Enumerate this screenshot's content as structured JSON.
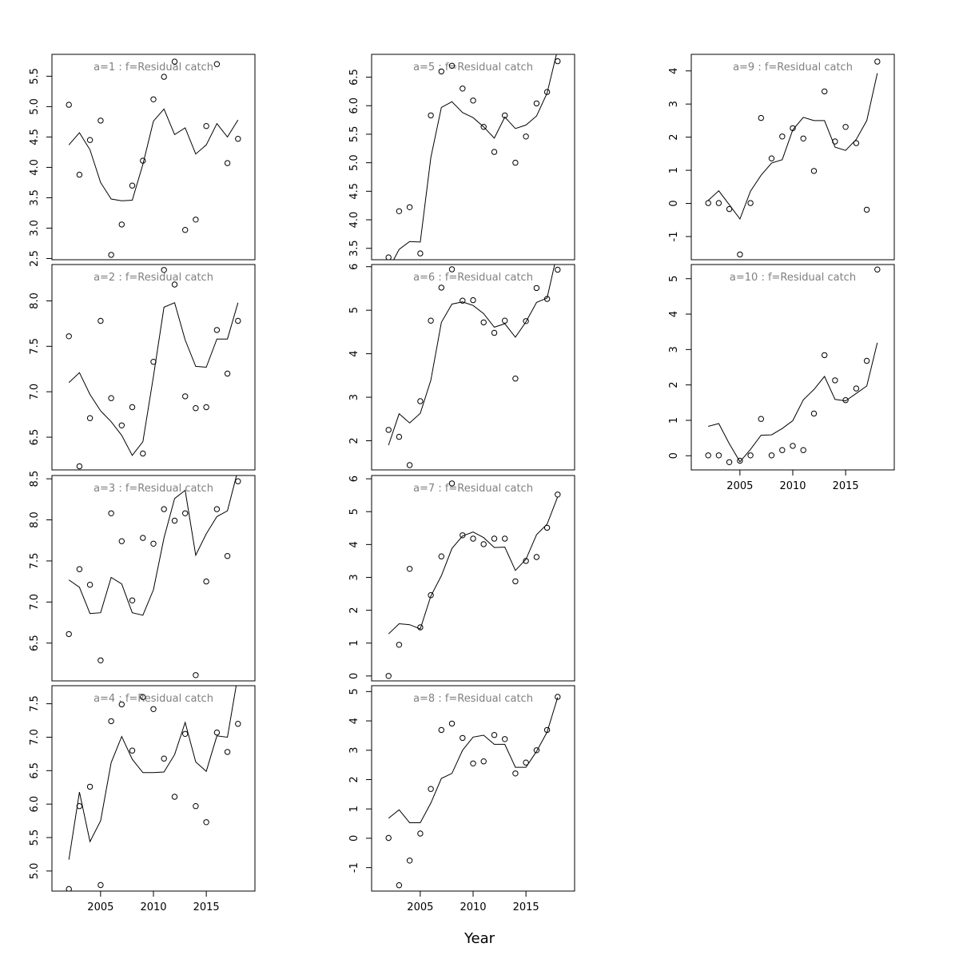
{
  "figure": {
    "xlabel": "Year",
    "line_color": "#000000",
    "title_color": "#808080"
  },
  "chart_data": [
    {
      "type": "line",
      "title": "a=1  :  f=Residual catch",
      "x": [
        2002,
        2003,
        2004,
        2005,
        2006,
        2007,
        2008,
        2009,
        2010,
        2011,
        2012,
        2013,
        2014,
        2015,
        2016,
        2017,
        2018
      ],
      "series": [
        {
          "role": "fitted line",
          "values": [
            4.37,
            4.57,
            4.29,
            3.75,
            3.48,
            3.45,
            3.46,
            4.05,
            4.76,
            4.96,
            4.54,
            4.65,
            4.22,
            4.37,
            4.72,
            4.5,
            4.78
          ]
        },
        {
          "role": "observed points",
          "values": [
            5.03,
            3.88,
            4.45,
            4.77,
            2.56,
            3.06,
            3.7,
            4.11,
            5.12,
            5.49,
            5.74,
            2.97,
            3.14,
            4.68,
            5.7,
            4.07,
            4.47
          ]
        }
      ],
      "xlim": [
        2000.4,
        2019.6
      ],
      "ylim": [
        2.48,
        5.86
      ],
      "y_ticks": [
        2.5,
        3.0,
        3.5,
        4.0,
        4.5,
        5.0,
        5.5
      ],
      "y_tick_labels": [
        "2.5",
        "3.0",
        "3.5",
        "4.0",
        "4.5",
        "5.0",
        "5.5"
      ],
      "x_ticks": [],
      "x_tick_labels": []
    },
    {
      "type": "line",
      "title": "a=2  :  f=Residual catch",
      "x": [
        2002,
        2003,
        2004,
        2005,
        2006,
        2007,
        2008,
        2009,
        2010,
        2011,
        2012,
        2013,
        2014,
        2015,
        2016,
        2017,
        2018
      ],
      "series": [
        {
          "role": "fitted line",
          "values": [
            7.1,
            7.21,
            6.97,
            6.79,
            6.67,
            6.52,
            6.3,
            6.45,
            7.17,
            7.93,
            7.98,
            7.57,
            7.28,
            7.27,
            7.58,
            7.58,
            7.98
          ]
        },
        {
          "role": "observed points",
          "values": [
            7.61,
            6.18,
            6.71,
            7.78,
            6.93,
            6.63,
            6.83,
            6.32,
            7.33,
            8.34,
            8.18,
            6.95,
            6.82,
            6.83,
            7.68,
            7.2,
            7.78
          ]
        }
      ],
      "xlim": [
        2000.4,
        2019.6
      ],
      "ylim": [
        6.14,
        8.4
      ],
      "y_ticks": [
        6.5,
        7.0,
        7.5,
        8.0
      ],
      "y_tick_labels": [
        "6.5",
        "7.0",
        "7.5",
        "8.0"
      ],
      "x_ticks": [],
      "x_tick_labels": []
    },
    {
      "type": "line",
      "title": "a=3  :  f=Residual catch",
      "x": [
        2002,
        2003,
        2004,
        2005,
        2006,
        2007,
        2008,
        2009,
        2010,
        2011,
        2012,
        2013,
        2014,
        2015,
        2016,
        2017,
        2018
      ],
      "series": [
        {
          "role": "fitted line",
          "values": [
            7.27,
            7.18,
            6.86,
            6.87,
            7.3,
            7.22,
            6.87,
            6.84,
            7.15,
            7.78,
            8.26,
            8.36,
            7.57,
            7.83,
            8.04,
            8.11,
            8.61
          ]
        },
        {
          "role": "observed points",
          "values": [
            6.61,
            7.4,
            7.21,
            6.29,
            8.08,
            7.74,
            7.02,
            7.78,
            7.71,
            8.13,
            7.99,
            8.08,
            6.11,
            7.25,
            8.13,
            7.56,
            8.47
          ]
        }
      ],
      "xlim": [
        2000.4,
        2019.6
      ],
      "ylim": [
        6.04,
        8.54
      ],
      "y_ticks": [
        6.5,
        7.0,
        7.5,
        8.0,
        8.5
      ],
      "y_tick_labels": [
        "6.5",
        "7.0",
        "7.5",
        "8.0",
        "8.5"
      ],
      "x_ticks": [],
      "x_tick_labels": []
    },
    {
      "type": "line",
      "title": "a=4  :  f=Residual catch",
      "x": [
        2002,
        2003,
        2004,
        2005,
        2006,
        2007,
        2008,
        2009,
        2010,
        2011,
        2012,
        2013,
        2014,
        2015,
        2016,
        2017,
        2018
      ],
      "series": [
        {
          "role": "fitted line",
          "values": [
            5.17,
            6.18,
            5.44,
            5.75,
            6.62,
            7.01,
            6.67,
            6.47,
            6.47,
            6.48,
            6.74,
            7.22,
            6.63,
            6.49,
            7.02,
            7.0,
            7.93
          ]
        },
        {
          "role": "observed points",
          "values": [
            4.73,
            5.97,
            6.26,
            4.79,
            7.24,
            7.49,
            6.8,
            7.6,
            7.42,
            6.68,
            6.11,
            7.05,
            5.97,
            5.73,
            7.07,
            6.78,
            7.2
          ]
        }
      ],
      "xlim": [
        2000.4,
        2019.6
      ],
      "ylim": [
        4.7,
        7.77
      ],
      "y_ticks": [
        5.0,
        5.5,
        6.0,
        6.5,
        7.0,
        7.5
      ],
      "y_tick_labels": [
        "5.0",
        "5.5",
        "6.0",
        "6.5",
        "7.0",
        "7.5"
      ],
      "x_ticks": [
        2005,
        2010,
        2015
      ],
      "x_tick_labels": [
        "2005",
        "2010",
        "2015"
      ]
    },
    {
      "type": "line",
      "title": "a=5  :  f=Residual catch",
      "x": [
        2002,
        2003,
        2004,
        2005,
        2006,
        2007,
        2008,
        2009,
        2010,
        2011,
        2012,
        2013,
        2014,
        2015,
        2016,
        2017,
        2018
      ],
      "series": [
        {
          "role": "fitted line",
          "values": [
            3.13,
            3.48,
            3.62,
            3.61,
            5.09,
            5.97,
            6.07,
            5.88,
            5.79,
            5.63,
            5.43,
            5.8,
            5.6,
            5.66,
            5.82,
            6.22,
            6.99
          ]
        },
        {
          "role": "observed points",
          "values": [
            3.34,
            4.15,
            4.22,
            3.41,
            5.83,
            6.6,
            6.7,
            6.3,
            6.09,
            5.63,
            5.19,
            5.83,
            5.0,
            5.46,
            6.04,
            6.24,
            6.78
          ]
        }
      ],
      "xlim": [
        2000.4,
        2019.6
      ],
      "ylim": [
        3.3,
        6.9
      ],
      "y_ticks": [
        3.5,
        4.0,
        4.5,
        5.0,
        5.5,
        6.0,
        6.5
      ],
      "y_tick_labels": [
        "3.5",
        "4.0",
        "4.5",
        "5.0",
        "5.5",
        "6.0",
        "6.5"
      ],
      "x_ticks": [],
      "x_tick_labels": []
    },
    {
      "type": "line",
      "title": "a=6  :  f=Residual catch",
      "x": [
        2002,
        2003,
        2004,
        2005,
        2006,
        2007,
        2008,
        2009,
        2010,
        2011,
        2012,
        2013,
        2014,
        2015,
        2016,
        2017,
        2018
      ],
      "series": [
        {
          "role": "fitted line",
          "values": [
            1.9,
            2.62,
            2.41,
            2.63,
            3.39,
            4.72,
            5.14,
            5.19,
            5.11,
            4.92,
            4.61,
            4.69,
            4.38,
            4.73,
            5.18,
            5.28,
            6.36
          ]
        },
        {
          "role": "observed points",
          "values": [
            2.25,
            2.09,
            1.44,
            2.91,
            4.76,
            5.52,
            5.94,
            5.22,
            5.23,
            4.72,
            4.48,
            4.76,
            3.43,
            4.75,
            5.51,
            5.26,
            5.93
          ]
        }
      ],
      "xlim": [
        2000.4,
        2019.6
      ],
      "ylim": [
        1.33,
        6.05
      ],
      "y_ticks": [
        2,
        3,
        4,
        5,
        6
      ],
      "y_tick_labels": [
        "2",
        "3",
        "4",
        "5",
        "6"
      ],
      "x_ticks": [],
      "x_tick_labels": []
    },
    {
      "type": "line",
      "title": "a=7  :  f=Residual catch",
      "x": [
        2002,
        2003,
        2004,
        2005,
        2006,
        2007,
        2008,
        2009,
        2010,
        2011,
        2012,
        2013,
        2014,
        2015,
        2016,
        2017,
        2018
      ],
      "series": [
        {
          "role": "fitted line",
          "values": [
            1.28,
            1.59,
            1.56,
            1.43,
            2.43,
            3.05,
            3.88,
            4.26,
            4.38,
            4.21,
            3.91,
            3.92,
            3.21,
            3.55,
            4.3,
            4.62,
            5.45
          ]
        },
        {
          "role": "observed points",
          "values": [
            0.0,
            0.95,
            3.26,
            1.48,
            2.46,
            3.64,
            5.86,
            4.28,
            4.18,
            4.01,
            4.18,
            4.18,
            2.88,
            3.5,
            3.62,
            4.51,
            5.52
          ]
        }
      ],
      "xlim": [
        2000.4,
        2019.6
      ],
      "ylim": [
        -0.15,
        6.1
      ],
      "y_ticks": [
        0,
        1,
        2,
        3,
        4,
        5,
        6
      ],
      "y_tick_labels": [
        "0",
        "1",
        "2",
        "3",
        "4",
        "5",
        "6"
      ],
      "x_ticks": [],
      "x_tick_labels": []
    },
    {
      "type": "line",
      "title": "a=8  :  f=Residual catch",
      "x": [
        2002,
        2003,
        2004,
        2005,
        2006,
        2007,
        2008,
        2009,
        2010,
        2011,
        2012,
        2013,
        2014,
        2015,
        2016,
        2017,
        2018
      ],
      "series": [
        {
          "role": "fitted line",
          "values": [
            0.68,
            0.97,
            0.53,
            0.53,
            1.2,
            2.04,
            2.21,
            3.0,
            3.45,
            3.51,
            3.2,
            3.2,
            2.42,
            2.42,
            2.96,
            3.62,
            4.8
          ]
        },
        {
          "role": "observed points",
          "values": [
            0.01,
            -1.6,
            -0.76,
            0.16,
            1.68,
            3.69,
            3.91,
            3.42,
            2.55,
            2.62,
            3.52,
            3.38,
            2.21,
            2.58,
            3.0,
            3.69,
            4.82
          ]
        }
      ],
      "xlim": [
        2000.4,
        2019.6
      ],
      "ylim": [
        -1.8,
        5.2
      ],
      "y_ticks": [
        -1,
        0,
        1,
        2,
        3,
        4,
        5
      ],
      "y_tick_labels": [
        "-1",
        "0",
        "1",
        "2",
        "3",
        "4",
        "5"
      ],
      "x_ticks": [
        2005,
        2010,
        2015
      ],
      "x_tick_labels": [
        "2005",
        "2010",
        "2015"
      ]
    },
    {
      "type": "line",
      "title": "a=9  :  f=Residual catch",
      "x": [
        2002,
        2003,
        2004,
        2005,
        2006,
        2007,
        2008,
        2009,
        2010,
        2011,
        2012,
        2013,
        2014,
        2015,
        2016,
        2017,
        2018
      ],
      "series": [
        {
          "role": "fitted line",
          "values": [
            0.09,
            0.38,
            -0.04,
            -0.47,
            0.37,
            0.85,
            1.22,
            1.32,
            2.22,
            2.6,
            2.5,
            2.5,
            1.7,
            1.6,
            1.93,
            2.5,
            3.93
          ]
        },
        {
          "role": "observed points",
          "values": [
            0.01,
            0.01,
            -0.17,
            -1.54,
            0.01,
            2.58,
            1.36,
            2.02,
            2.27,
            1.96,
            0.98,
            3.38,
            1.87,
            2.31,
            1.82,
            -0.19,
            4.28
          ]
        }
      ],
      "xlim": [
        2000.4,
        2019.6
      ],
      "ylim": [
        -1.7,
        4.5
      ],
      "y_ticks": [
        -1,
        0,
        1,
        2,
        3,
        4
      ],
      "y_tick_labels": [
        "-1",
        "0",
        "1",
        "2",
        "3",
        "4"
      ],
      "x_ticks": [],
      "x_tick_labels": []
    },
    {
      "type": "line",
      "title": "a=10  :  f=Residual catch",
      "x": [
        2002,
        2003,
        2004,
        2005,
        2006,
        2007,
        2008,
        2009,
        2010,
        2011,
        2012,
        2013,
        2014,
        2015,
        2016,
        2017,
        2018
      ],
      "series": [
        {
          "role": "fitted line",
          "values": [
            0.83,
            0.91,
            0.34,
            -0.17,
            0.18,
            0.58,
            0.59,
            0.77,
            0.99,
            1.58,
            1.87,
            2.24,
            1.59,
            1.55,
            1.76,
            1.97,
            3.19
          ]
        },
        {
          "role": "observed points",
          "values": [
            0.01,
            0.01,
            -0.18,
            -0.14,
            0.01,
            1.04,
            0.01,
            0.16,
            0.28,
            0.16,
            1.19,
            2.84,
            2.13,
            1.57,
            1.9,
            2.68,
            5.26
          ]
        }
      ],
      "xlim": [
        2000.4,
        2019.6
      ],
      "ylim": [
        -0.4,
        5.4
      ],
      "y_ticks": [
        0,
        1,
        2,
        3,
        4,
        5
      ],
      "y_tick_labels": [
        "0",
        "1",
        "2",
        "3",
        "4",
        "5"
      ],
      "x_ticks": [
        2005,
        2010,
        2015
      ],
      "x_tick_labels": [
        "2005",
        "2010",
        "2015"
      ]
    }
  ]
}
